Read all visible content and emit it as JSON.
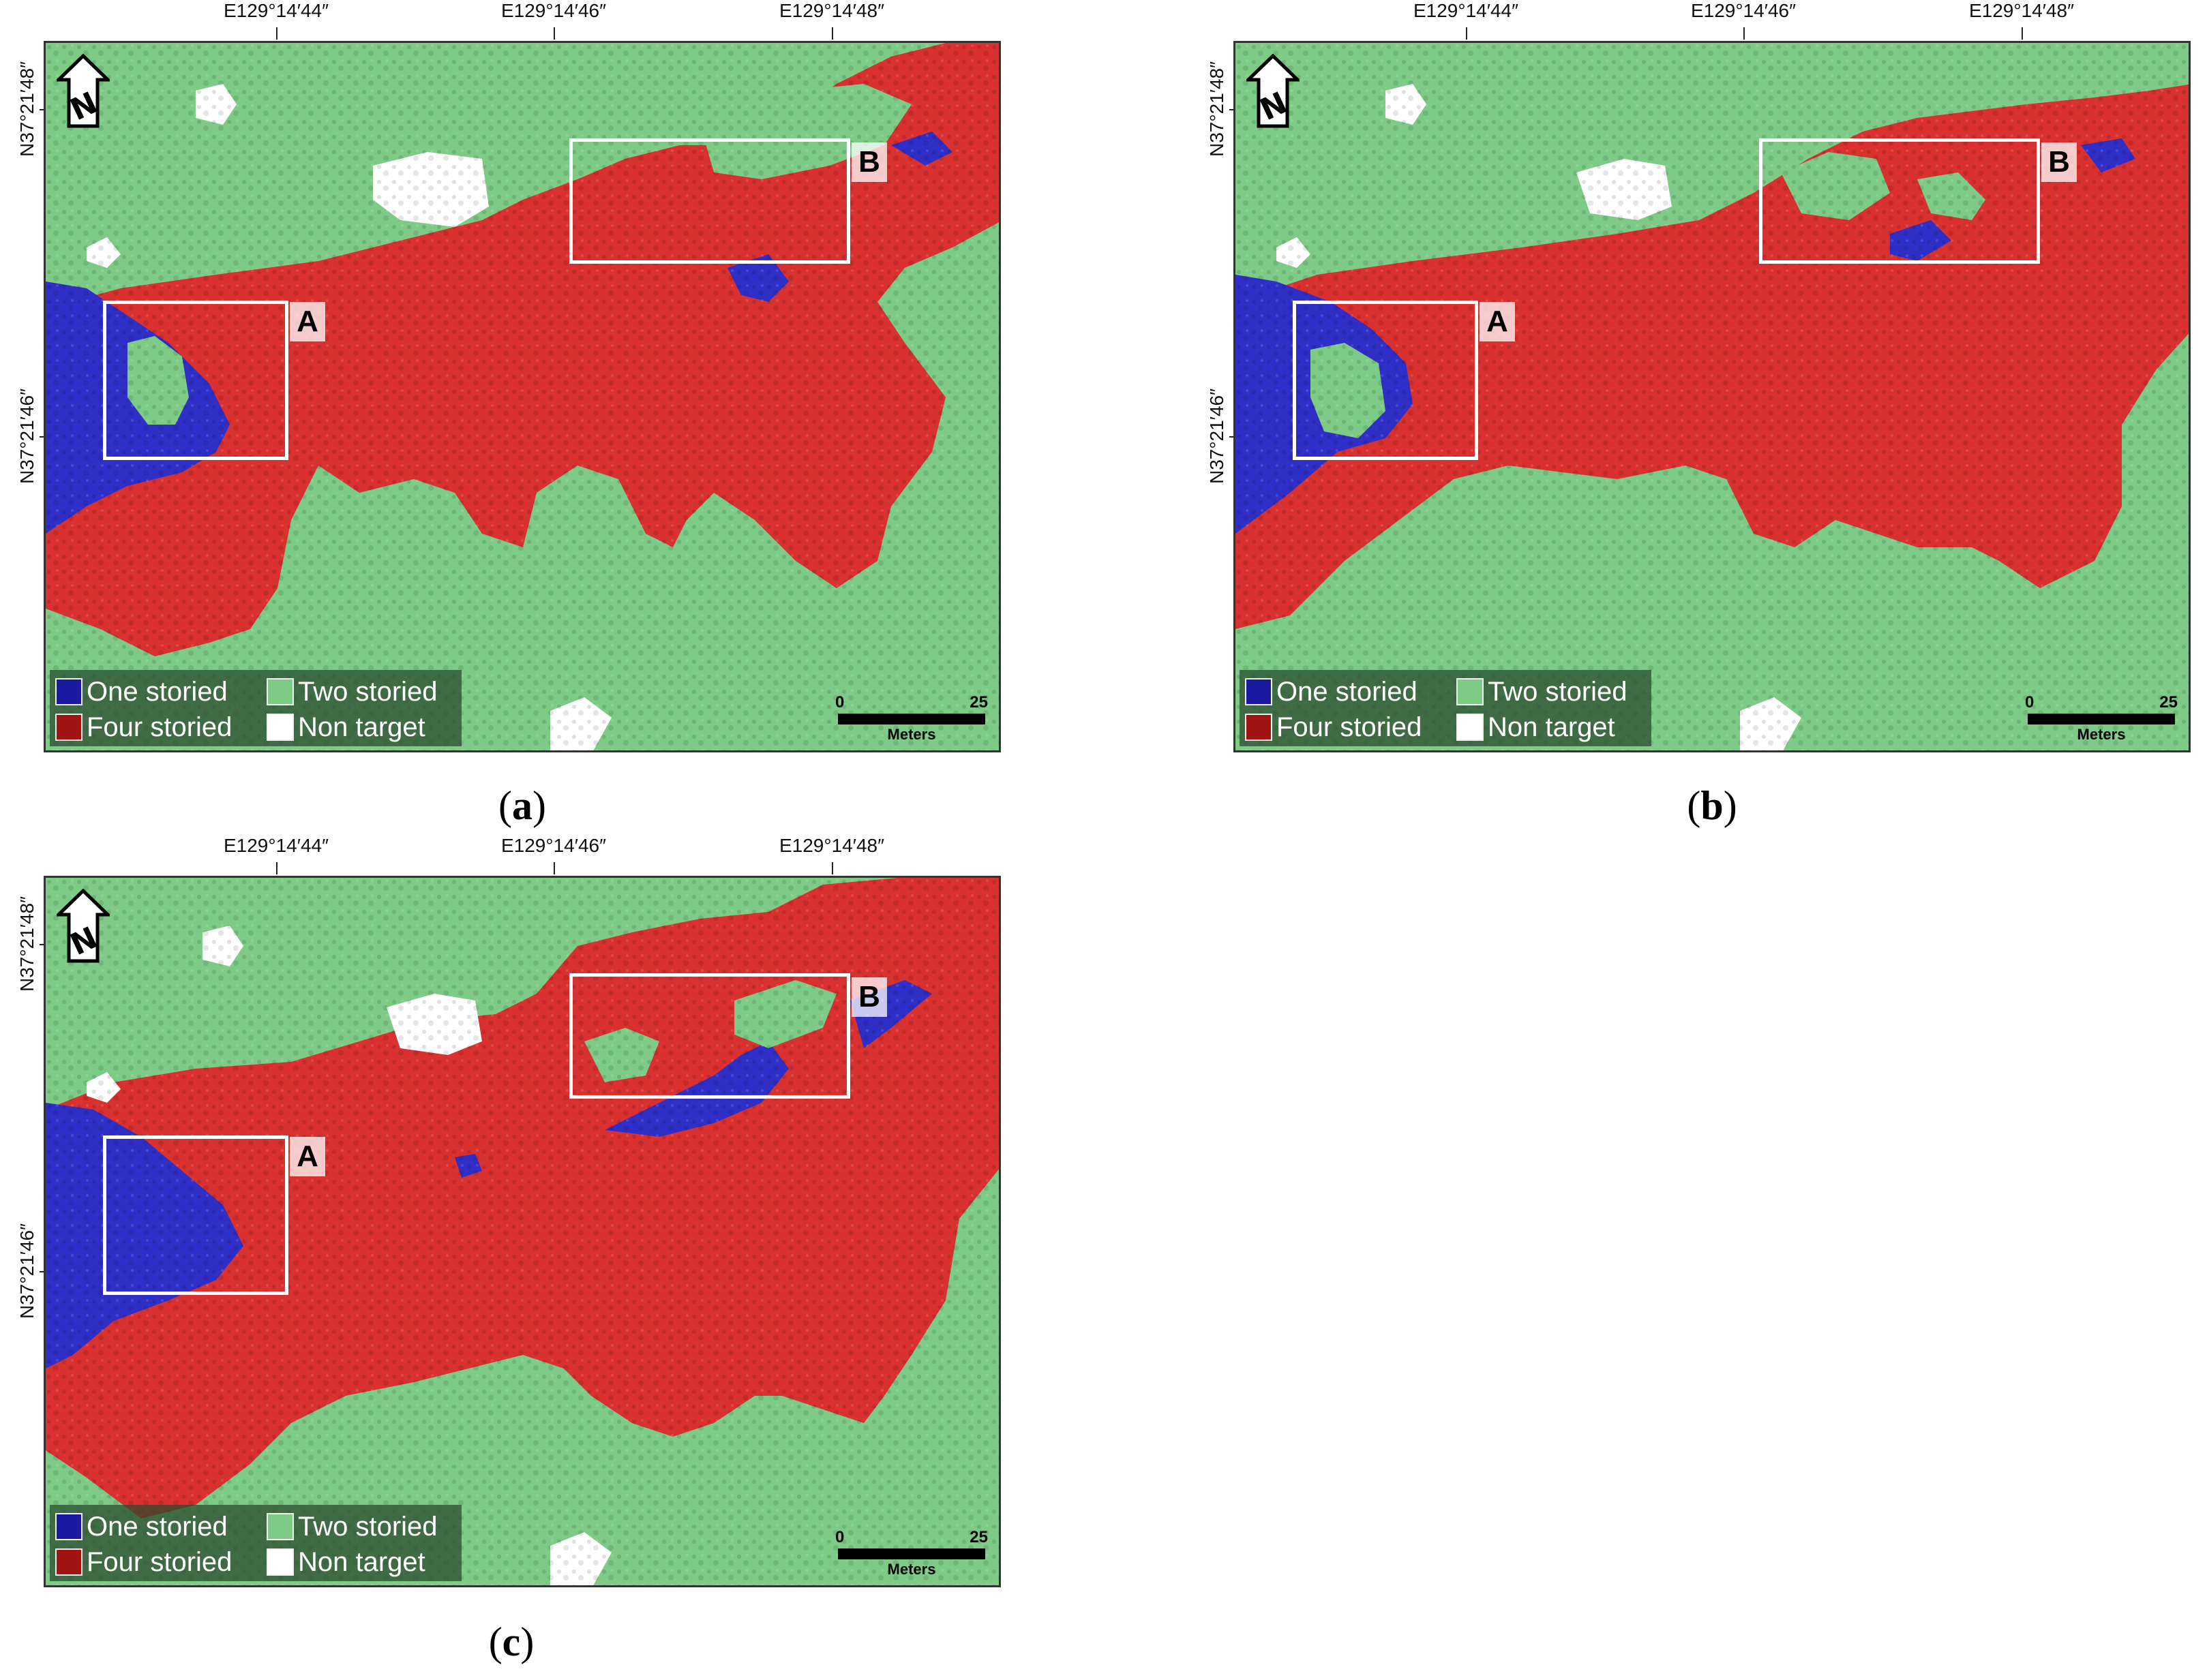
{
  "legend": {
    "one_storied": "One storied",
    "two_storied": "Two storied",
    "four_storied": "Four storied",
    "non_target": "Non target"
  },
  "colors": {
    "one_storied": "#2f2fc8",
    "two_storied": "#7dcb86",
    "four_storied": "#d93030",
    "non_target": "#ffffff",
    "legend_one": "#1a1aa0",
    "legend_two": "#7dcb86",
    "legend_four": "#a01414",
    "legend_non": "#ffffff"
  },
  "scale": {
    "start": "0",
    "end": "25",
    "unit": "Meters"
  },
  "longitude_labels": [
    "E129°14′44″",
    "E129°14′46″",
    "E129°14′48″"
  ],
  "latitude_labels": [
    "N37°21′48″",
    "N37°21′46″"
  ],
  "box_labels": {
    "a": "A",
    "b": "B"
  },
  "north_arrow": "N",
  "panels": [
    {
      "id": "a",
      "caption_open": "(",
      "caption_letter": "a",
      "caption_close": ")"
    },
    {
      "id": "b",
      "caption_open": "(",
      "caption_letter": "b",
      "caption_close": ")"
    },
    {
      "id": "c",
      "caption_open": "(",
      "caption_letter": "c",
      "caption_close": ")"
    }
  ]
}
